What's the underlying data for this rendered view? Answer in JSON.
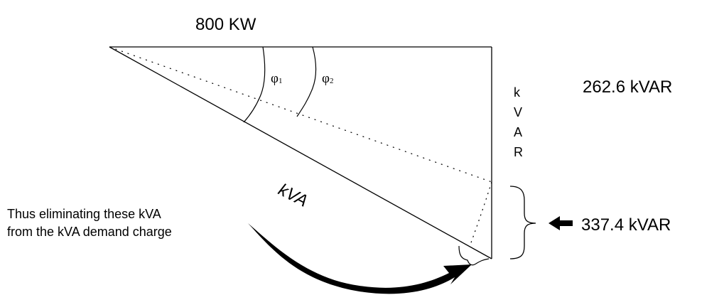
{
  "diagram": {
    "real_power_label": "800 KW",
    "reactive_label_letters": [
      "k",
      "V",
      "A",
      "R"
    ],
    "reactive_remaining_value": "262.6 kVAR",
    "reactive_eliminated_value": "337.4 kVAR",
    "apparent_power_label": "kVA",
    "angle_1": {
      "symbol": "φ",
      "subscript": "1"
    },
    "angle_2": {
      "symbol": "φ",
      "subscript": "2"
    },
    "note_line_1": "Thus eliminating these kVA",
    "note_line_2": "from the kVA demand charge"
  },
  "colors": {
    "ink": "#000000",
    "background": "#ffffff"
  },
  "icons": {
    "pointer": "left-arrow-icon",
    "curve": "curved-arrow-icon"
  }
}
